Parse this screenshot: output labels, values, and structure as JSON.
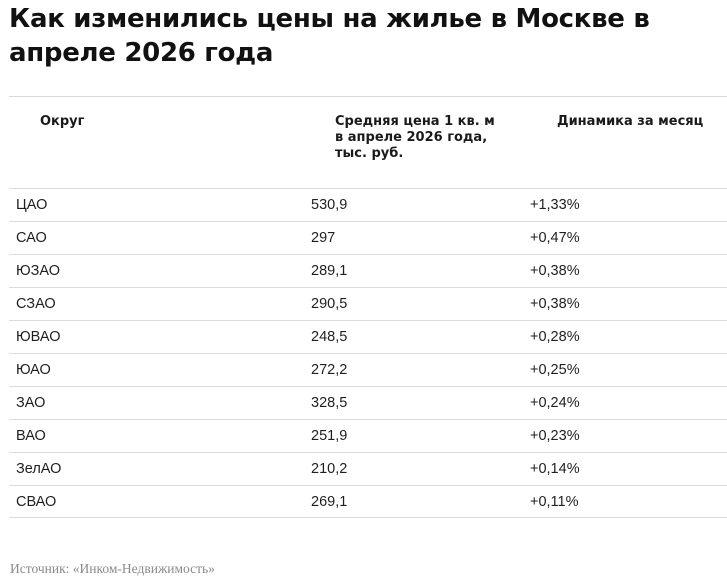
{
  "title": "Как изменились цены на жилье в Москве в апреле 2026 года",
  "table": {
    "headers": {
      "district": "Округ",
      "price": "Средняя цена 1 кв. м в апреле 2026 года, тыс. руб.",
      "change": "Динамика за месяц"
    },
    "rows": [
      {
        "district": "ЦАО",
        "price": "530,9",
        "change": "+1,33%"
      },
      {
        "district": "САО",
        "price": "297",
        "change": "+0,47%"
      },
      {
        "district": "ЮЗАО",
        "price": "289,1",
        "change": "+0,38%"
      },
      {
        "district": "СЗАО",
        "price": "290,5",
        "change": "+0,38%"
      },
      {
        "district": "ЮВАО",
        "price": "248,5",
        "change": "+0,28%"
      },
      {
        "district": "ЮАО",
        "price": "272,2",
        "change": "+0,25%"
      },
      {
        "district": "ЗАО",
        "price": "328,5",
        "change": "+0,24%"
      },
      {
        "district": "ВАО",
        "price": "251,9",
        "change": "+0,23%"
      },
      {
        "district": "ЗелАО",
        "price": "210,2",
        "change": "+0,14%"
      },
      {
        "district": "СВАО",
        "price": "269,1",
        "change": "+0,11%"
      }
    ]
  },
  "source": "Источник: «Инком-Недвижимость»"
}
